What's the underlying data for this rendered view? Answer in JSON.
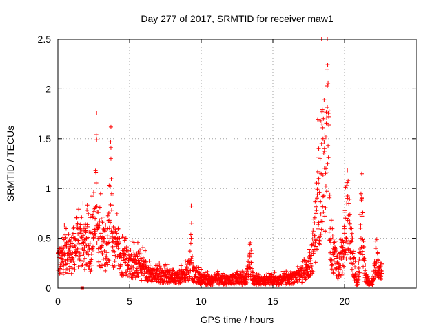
{
  "chart_data": {
    "type": "scatter",
    "title": "Day 277 of 2017, SRMTID for receiver maw1",
    "xlabel": "GPS time / hours",
    "ylabel": "SRMTID / TECUs",
    "xlim": [
      0,
      25
    ],
    "ylim": [
      0,
      2.5
    ],
    "xticks": [
      0,
      5,
      10,
      15,
      20
    ],
    "yticks": [
      0,
      0.5,
      1,
      1.5,
      2,
      2.5
    ],
    "xtick_labels": [
      "0",
      "5",
      "10",
      "15",
      "20"
    ],
    "ytick_labels": [
      "0",
      "0.5",
      "1",
      "1.5",
      "2",
      "2.5"
    ],
    "grid": true,
    "marker": "+",
    "series": [
      {
        "name": "SRMTID",
        "color": "#ff0000",
        "x": [
          0.0,
          0.2,
          0.4,
          0.6,
          0.8,
          1.0,
          1.2,
          1.4,
          1.6,
          1.8,
          2.0,
          2.2,
          2.4,
          2.6,
          2.7,
          2.8,
          3.0,
          3.2,
          3.4,
          3.6,
          3.7,
          3.8,
          4.0,
          4.2,
          4.4,
          4.6,
          4.8,
          5.0,
          5.2,
          5.4,
          5.6,
          5.8,
          6.0,
          6.2,
          6.4,
          6.6,
          6.8,
          7.0,
          7.2,
          7.4,
          7.6,
          7.8,
          8.0,
          8.2,
          8.4,
          8.6,
          8.8,
          9.0,
          9.2,
          9.3,
          9.4,
          9.6,
          9.8,
          10.0,
          10.2,
          10.4,
          10.6,
          10.8,
          11.0,
          11.2,
          11.4,
          11.6,
          11.8,
          12.0,
          12.2,
          12.4,
          12.6,
          12.8,
          13.0,
          13.2,
          13.4,
          13.6,
          13.8,
          14.0,
          14.2,
          14.4,
          14.6,
          14.8,
          15.0,
          15.2,
          15.4,
          15.6,
          15.8,
          16.0,
          16.2,
          16.4,
          16.6,
          16.8,
          17.0,
          17.2,
          17.4,
          17.6,
          17.8,
          18.0,
          18.2,
          18.3,
          18.4,
          18.5,
          18.6,
          18.7,
          18.8,
          19.0,
          19.2,
          19.4,
          19.6,
          19.8,
          20.0,
          20.2,
          20.4,
          20.6,
          20.8,
          20.9,
          21.0,
          21.2,
          21.4,
          21.6,
          21.8,
          22.0,
          22.2,
          22.4,
          22.6
        ],
        "y": [
          0.35,
          0.3,
          0.4,
          0.45,
          0.38,
          0.42,
          0.5,
          0.48,
          0.55,
          0.45,
          0.5,
          0.4,
          0.55,
          0.7,
          1.49,
          0.6,
          0.55,
          0.5,
          0.45,
          0.6,
          1.3,
          0.55,
          0.45,
          0.4,
          0.35,
          0.32,
          0.3,
          0.3,
          0.28,
          0.25,
          0.28,
          0.22,
          0.24,
          0.2,
          0.18,
          0.16,
          0.15,
          0.14,
          0.15,
          0.13,
          0.14,
          0.13,
          0.15,
          0.14,
          0.12,
          0.14,
          0.13,
          0.2,
          0.25,
          0.5,
          0.18,
          0.14,
          0.12,
          0.11,
          0.1,
          0.09,
          0.1,
          0.08,
          0.12,
          0.11,
          0.1,
          0.09,
          0.1,
          0.09,
          0.11,
          0.1,
          0.12,
          0.1,
          0.09,
          0.12,
          0.35,
          0.1,
          0.09,
          0.08,
          0.09,
          0.1,
          0.08,
          0.09,
          0.1,
          0.09,
          0.08,
          0.1,
          0.09,
          0.11,
          0.1,
          0.12,
          0.11,
          0.14,
          0.16,
          0.18,
          0.22,
          0.3,
          0.45,
          0.75,
          1.1,
          1.3,
          1.45,
          1.5,
          1.4,
          1.2,
          2.03,
          0.6,
          0.4,
          0.3,
          0.2,
          0.35,
          0.55,
          0.9,
          0.6,
          0.3,
          0.1,
          0.05,
          0.2,
          0.9,
          0.15,
          0.08,
          0.05,
          0.1,
          0.4,
          0.15,
          0.25
        ],
        "extra_points": {
          "x": [
            1.7
          ],
          "y": [
            0.0
          ]
        }
      }
    ]
  }
}
